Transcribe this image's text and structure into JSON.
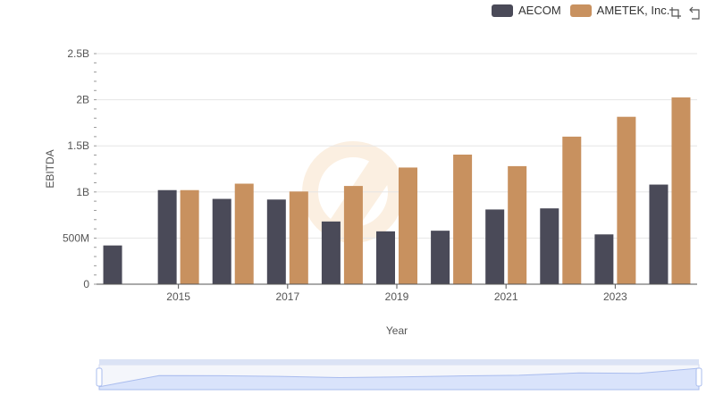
{
  "legend": {
    "items": [
      {
        "label": "AECOM",
        "color": "#4a4a58"
      },
      {
        "label": "AMETEK, Inc.",
        "color": "#c8915f"
      }
    ]
  },
  "toolbox": {
    "icons": [
      "zoom-icon",
      "restore-icon"
    ]
  },
  "chart_data": {
    "type": "bar",
    "x": [
      2014,
      2015,
      2016,
      2017,
      2018,
      2019,
      2020,
      2021,
      2022,
      2023,
      2024
    ],
    "x_tick_labels": [
      "2015",
      "2017",
      "2019",
      "2021",
      "2023"
    ],
    "series": [
      {
        "name": "AECOM",
        "color": "#4a4a58",
        "values": [
          420000000,
          1020000000,
          925000000,
          918000000,
          680000000,
          573000000,
          580000000,
          810000000,
          822000000,
          540000000,
          1080000000
        ]
      },
      {
        "name": "AMETEK, Inc.",
        "color": "#c8915f",
        "values": [
          null,
          1020000000,
          1090000000,
          1005000000,
          1065000000,
          1265000000,
          1405000000,
          1280000000,
          1600000000,
          1815000000,
          2025000000
        ]
      }
    ],
    "ylim": [
      0,
      2500000000
    ],
    "y_ticks": [
      {
        "value": 0,
        "label": "0"
      },
      {
        "value": 500000000,
        "label": "500M"
      },
      {
        "value": 1000000000,
        "label": "1B"
      },
      {
        "value": 1500000000,
        "label": "1.5B"
      },
      {
        "value": 2000000000,
        "label": "2B"
      },
      {
        "value": 2500000000,
        "label": "2.5B"
      }
    ],
    "xlabel": "Year",
    "ylabel": "EBITDA",
    "grid": true,
    "legend_position": "top-right",
    "datazoom": {
      "start": 0,
      "end": 100
    }
  }
}
